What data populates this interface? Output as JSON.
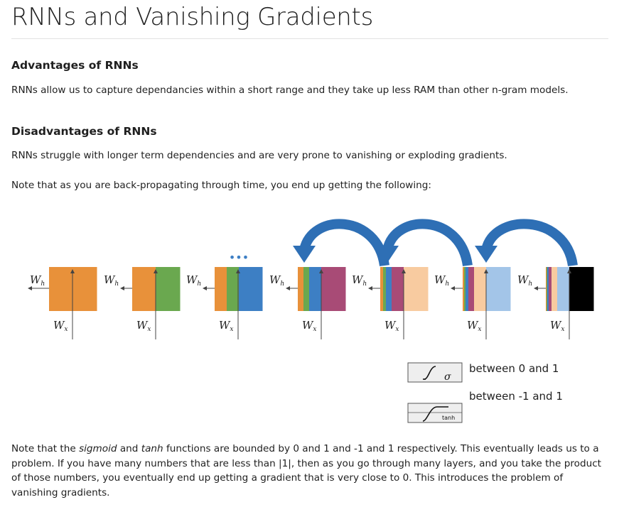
{
  "page": {
    "title": "RNNs and Vanishing Gradients",
    "advantages_heading": "Advantages of RNNs",
    "advantages_text": "RNNs allow us to capture dependancies within a short range and they take up less RAM than other n-gram models.",
    "disadvantages_heading": "Disadvantages of RNNs",
    "disadvantages_text": "RNNs struggle with longer term dependencies and are very prone to vanishing or exploding gradients.",
    "note_text": "Note that as you are back-propagating through time, you end up getting the following:",
    "bottom_parts": {
      "p1": "Note that the ",
      "sigmoid": "sigmoid",
      "p2": " and ",
      "tanh": "tanh",
      "p3": " functions are bounded by 0 and 1 and -1 and 1 respectively. This eventually leads us to a problem. If you have many numbers that are less than |1|, then as you go through many layers, and you take the product of those numbers, you eventually end up getting a gradient that is very close to 0. This introduces the problem of vanishing gradients."
    }
  },
  "diagram": {
    "wh_label": "W",
    "wh_sub": "h",
    "wx_label": "W",
    "wx_sub": "x",
    "ellipsis": "•••",
    "colors": {
      "orange": "#e8913a",
      "green": "#6aa84f",
      "blue": "#3d7fc4",
      "purple": "#a84b76",
      "peach": "#f8cba0",
      "lightblue": "#a3c5e8",
      "black": "#000000",
      "arrow": "#2e6fb5"
    }
  },
  "legend": {
    "sigma_symbol": "σ",
    "sigmoid_range": "between 0 and 1",
    "tanh_symbol": "tanh",
    "tanh_range": "between -1 and 1"
  }
}
